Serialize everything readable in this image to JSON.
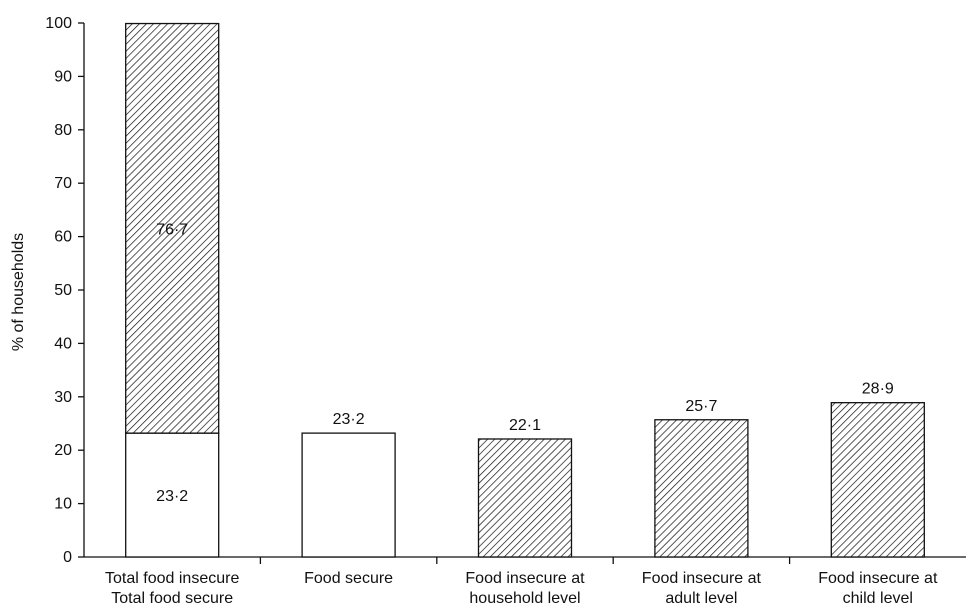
{
  "chart_data": {
    "type": "bar",
    "stacked_first": true,
    "ylabel": "% of households",
    "ylim": [
      0,
      100
    ],
    "yticks": [
      0,
      10,
      20,
      30,
      40,
      50,
      60,
      70,
      80,
      90,
      100
    ],
    "categories": [
      {
        "lines": [
          "Total food insecure",
          "Total food secure"
        ]
      },
      {
        "lines": [
          "Food secure"
        ]
      },
      {
        "lines": [
          "Food insecure at",
          "household level"
        ]
      },
      {
        "lines": [
          "Food insecure at",
          "adult level"
        ]
      },
      {
        "lines": [
          "Food insecure at",
          "child level"
        ]
      }
    ],
    "bars": [
      {
        "segments": [
          {
            "value": 23.2,
            "label": "23·2",
            "fill": "plain",
            "label_pos": "inside"
          },
          {
            "value": 76.7,
            "label": "76·7",
            "fill": "hatched",
            "label_pos": "inside"
          }
        ]
      },
      {
        "segments": [
          {
            "value": 23.2,
            "label": "23·2",
            "fill": "plain",
            "label_pos": "above"
          }
        ]
      },
      {
        "segments": [
          {
            "value": 22.1,
            "label": "22·1",
            "fill": "hatched",
            "label_pos": "above"
          }
        ]
      },
      {
        "segments": [
          {
            "value": 25.7,
            "label": "25·7",
            "fill": "hatched",
            "label_pos": "above"
          }
        ]
      },
      {
        "segments": [
          {
            "value": 28.9,
            "label": "28·9",
            "fill": "hatched",
            "label_pos": "above"
          }
        ]
      }
    ],
    "colors": {
      "axis": "#111111",
      "bar_outline": "#111111",
      "hatch": "#111111",
      "plain_fill": "#ffffff"
    },
    "grid": false
  }
}
